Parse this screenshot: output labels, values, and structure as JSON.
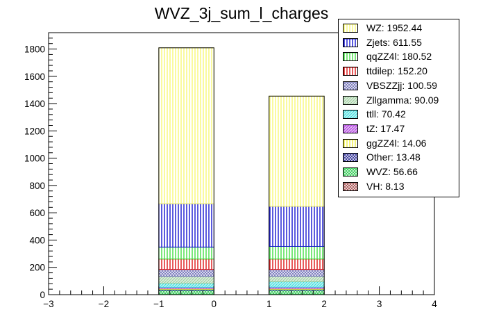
{
  "chart_data": {
    "type": "bar",
    "stacked": true,
    "title": "WVZ_3j_sum_l_charges",
    "xlabel": "",
    "ylabel": "",
    "xlim": [
      -3,
      4
    ],
    "ylim": [
      0,
      1920
    ],
    "x_ticks": [
      "−3",
      "−2",
      "−1",
      "0",
      "1",
      "2",
      "3",
      "4"
    ],
    "y_ticks": [
      "0",
      "200",
      "400",
      "600",
      "800",
      "1000",
      "1200",
      "1400",
      "1600",
      "1800"
    ],
    "grid": false,
    "legend_position": "top-right",
    "bins": [
      {
        "x_low": -1,
        "x_high": 0
      },
      {
        "x_low": 1,
        "x_high": 2
      }
    ],
    "series": [
      {
        "name": "WZ",
        "label": "WZ: 1952.44",
        "color": "#f7f76a",
        "values": [
          1143,
          808
        ]
      },
      {
        "name": "Zjets",
        "label": "Zjets: 611.55",
        "color": "#0000cc",
        "values": [
          318,
          293
        ]
      },
      {
        "name": "qqZZ4l",
        "label": "qqZZ4l: 180.52",
        "color": "#33dd33",
        "values": [
          87,
          93
        ]
      },
      {
        "name": "ttdilep",
        "label": "ttdilep: 152.20",
        "color": "#dd0000",
        "values": [
          76,
          76
        ]
      },
      {
        "name": "VBSZZjj",
        "label": "VBSZZjj: 100.59",
        "color": "#7777bb",
        "values": [
          51,
          50
        ]
      },
      {
        "name": "Zllgamma",
        "label": "Zllgamma: 90.09",
        "color": "#99cc99",
        "values": [
          50,
          40
        ]
      },
      {
        "name": "ttll",
        "label": "ttll: 70.42",
        "color": "#33dddd",
        "values": [
          30,
          40
        ]
      },
      {
        "name": "tZ",
        "label": "tZ: 17.47",
        "color": "#aa33dd",
        "values": [
          8,
          9
        ]
      },
      {
        "name": "ggZZ4l",
        "label": "ggZZ4l: 14.06",
        "color": "#eeee33",
        "values": [
          7,
          7
        ]
      },
      {
        "name": "Other",
        "label": "Other: 13.48",
        "color": "#333399",
        "values": [
          7,
          6
        ]
      },
      {
        "name": "WVZ",
        "label": "WVZ: 56.66",
        "color": "#33cc55",
        "values": [
          28,
          29
        ]
      },
      {
        "name": "VH",
        "label": "VH: 8.13",
        "color": "#aa5555",
        "values": [
          4,
          4
        ]
      }
    ]
  }
}
